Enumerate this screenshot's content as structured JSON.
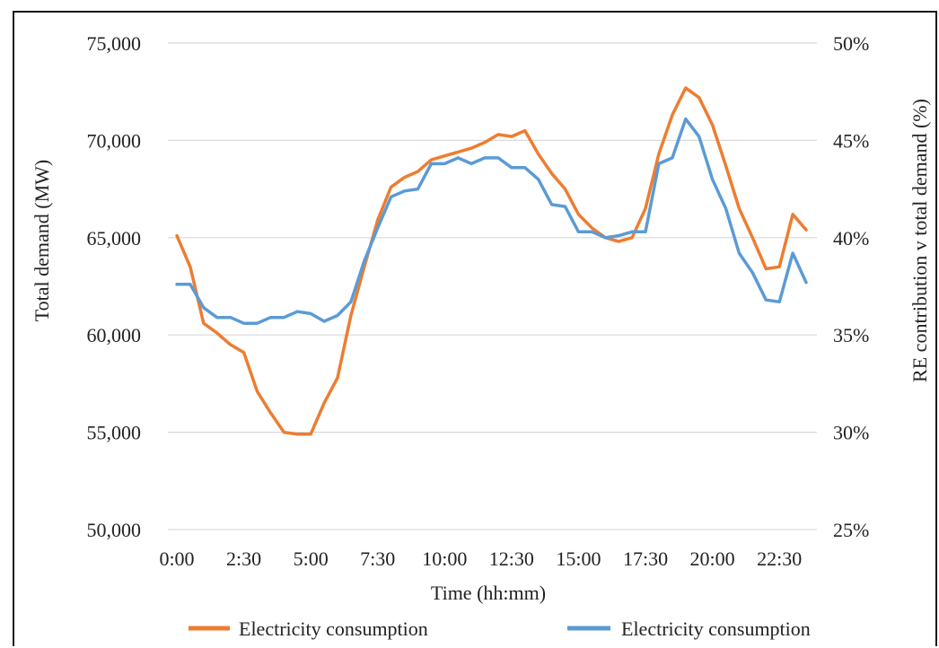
{
  "chart_data": {
    "type": "line",
    "xlabel": "Time (hh:mm)",
    "ylabel": "Total demand (MW)",
    "y2label": "RE contribution v total demand (%)",
    "x_ticks": [
      "0:00",
      "2:30",
      "5:00",
      "7:30",
      "10:00",
      "12:30",
      "15:00",
      "17:30",
      "20:00",
      "22:30"
    ],
    "ylim": [
      50000,
      75000
    ],
    "y_ticks": [
      50000,
      55000,
      60000,
      65000,
      70000,
      75000
    ],
    "y_tick_labels": [
      "50,000",
      "55,000",
      "60,000",
      "65,000",
      "70,000",
      "75,000"
    ],
    "y2lim": [
      25,
      50
    ],
    "y2_ticks": [
      25,
      30,
      35,
      40,
      45,
      50
    ],
    "y2_tick_labels": [
      "25%",
      "30%",
      "35%",
      "40%",
      "45%",
      "50%"
    ],
    "grid": true,
    "legend_position": "bottom",
    "series": [
      {
        "name": "Electricity consumption",
        "axis": "left",
        "color": "#ED7D31",
        "values": [
          65100,
          63500,
          60600,
          60100,
          59500,
          59100,
          57100,
          56000,
          55000,
          54900,
          54900,
          56500,
          57800,
          61000,
          63500,
          65900,
          67600,
          68100,
          68400,
          69000,
          69200,
          69400,
          69600,
          69900,
          70300,
          70200,
          70500,
          69300,
          68300,
          67500,
          66200,
          65500,
          65000,
          64800,
          65000,
          66500,
          69300,
          71300,
          72700,
          72200,
          70800,
          68700,
          66500,
          65000,
          63400,
          63500,
          66200,
          65400
        ]
      },
      {
        "name": "Electricity consumption",
        "axis": "right",
        "color": "#5B9BD5",
        "values": [
          37.6,
          37.6,
          36.4,
          35.9,
          35.9,
          35.6,
          35.6,
          35.9,
          35.9,
          36.2,
          36.1,
          35.7,
          36.0,
          36.7,
          38.8,
          40.5,
          42.1,
          42.4,
          42.5,
          43.8,
          43.8,
          44.1,
          43.8,
          44.1,
          44.1,
          43.6,
          43.6,
          43.0,
          41.7,
          41.6,
          40.3,
          40.3,
          40.0,
          40.1,
          40.3,
          40.3,
          43.8,
          44.1,
          46.1,
          45.2,
          43.0,
          41.5,
          39.2,
          38.2,
          36.8,
          36.7,
          39.2,
          37.7
        ]
      }
    ]
  }
}
